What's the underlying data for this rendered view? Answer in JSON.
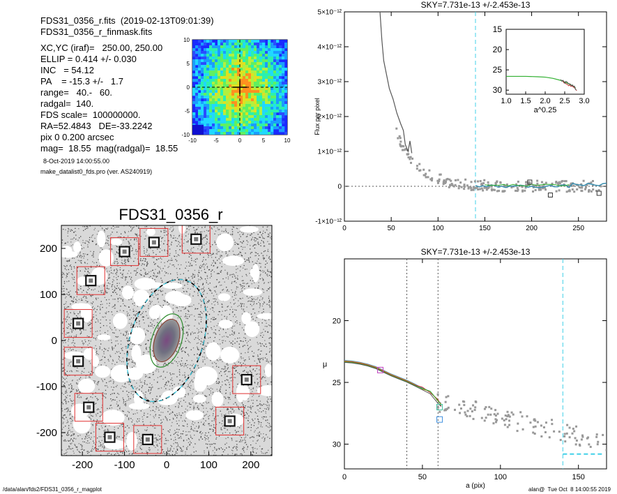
{
  "header": {
    "line1": "FDS31_0356_r.fits  (2019-02-13T09:01:39)",
    "line2": "FDS31_0356_r_finmask.fits",
    "params": [
      "XC,YC (iraf)=   250.00, 250.00",
      "ELLIP = 0.414 +/- 0.030",
      "INC   = 54.12",
      "PA    = -15.3 +/-   1.7",
      "range=   40.-   60.",
      "radgal=  140.",
      "FDS scale=  100000000.",
      "RA=52.4843   DE=-33.2242",
      "pix 0 0.200 arcsec",
      "mag=  18.55  mag(radgal)=  18.55"
    ],
    "date": "8-Oct-2019 14:00:55.00",
    "program": "make_datalist0_fds.pro (ver. AS240919)"
  },
  "footer": {
    "path": "/data/alan/fds2/FDS31_0356_r_magplot",
    "stamp": "alan@  Tue Oct  8 14:00:55 2019"
  },
  "colors": {
    "mask_red": "#e03030",
    "cyan": "#40d0e8",
    "green": "#30b030",
    "grey": "#888888"
  },
  "chart_data": [
    {
      "id": "thumbnail",
      "type": "heatmap",
      "title": "",
      "xlim": [
        -10,
        10
      ],
      "ylim": [
        -10,
        10
      ],
      "xticks": [
        -10,
        -5,
        0,
        5,
        10
      ],
      "yticks": [
        -10,
        -5,
        0,
        5,
        10
      ],
      "crosshair": [
        0,
        0
      ]
    },
    {
      "id": "galaxy_image",
      "type": "scatter",
      "title": "FDS31_0356_r",
      "xlim": [
        -250,
        250
      ],
      "ylim": [
        -250,
        250
      ],
      "xticks": [
        -200,
        -100,
        0,
        100,
        200
      ],
      "yticks": [
        -200,
        -100,
        0,
        100,
        200
      ],
      "ellipse_outer": {
        "a": 140,
        "ellip": 0.414,
        "pa": -15.3
      },
      "ellipse_inner": {
        "a": 60,
        "ellip": 0.414,
        "pa": -15.3
      },
      "masked_stars": [
        {
          "x": 70,
          "y": 220
        },
        {
          "x": -30,
          "y": 213
        },
        {
          "x": -100,
          "y": 193
        },
        {
          "x": -180,
          "y": 130
        },
        {
          "x": -210,
          "y": 37
        },
        {
          "x": -210,
          "y": -45
        },
        {
          "x": 190,
          "y": -85
        },
        {
          "x": -185,
          "y": -145
        },
        {
          "x": 150,
          "y": -175
        },
        {
          "x": -135,
          "y": -210
        },
        {
          "x": -45,
          "y": -215
        }
      ]
    },
    {
      "id": "sky_profile",
      "type": "scatter",
      "title": "SKY=7.731e-13 +/-2.453e-13",
      "xlabel": "",
      "ylabel": "Flux per pixel",
      "xlim": [
        0,
        280
      ],
      "ylim": [
        -1e-12,
        5e-12
      ],
      "xticks": [
        0,
        50,
        100,
        150,
        200,
        250
      ],
      "yticks": [
        -1e-12,
        0,
        1e-12,
        2e-12,
        3e-12,
        4e-12,
        5e-12
      ],
      "ytick_labels": [
        "-1×10⁻¹²",
        "0",
        "1×10⁻¹²",
        "2×10⁻¹²",
        "3×10⁻¹²",
        "4×10⁻¹²",
        "5×10⁻¹²"
      ],
      "vline": 140,
      "curve": [
        [
          38,
          5e-12
        ],
        [
          40,
          4.2e-12
        ],
        [
          42,
          3.6e-12
        ],
        [
          45,
          3.2e-12
        ],
        [
          48,
          2.8e-12
        ],
        [
          52,
          2.5e-12
        ],
        [
          56,
          2.1e-12
        ],
        [
          60,
          1.8e-12
        ],
        [
          63,
          1.6e-12
        ],
        [
          65,
          1.2e-12
        ],
        [
          68,
          1e-12
        ],
        [
          70,
          1.3e-12
        ],
        [
          72,
          9.5e-13
        ]
      ],
      "outliers": [
        [
          198,
          1.2e-13
        ],
        [
          220,
          -2.5e-13
        ],
        [
          272,
          -2e-13
        ]
      ],
      "inset": {
        "xlabel": "a^0.25",
        "xlim": [
          1.0,
          3.0
        ],
        "ylim": [
          31,
          15
        ],
        "xticks": [
          1.0,
          1.5,
          2.0,
          2.5,
          3.0
        ],
        "yticks": [
          15,
          20,
          25,
          30
        ],
        "green_curve": [
          [
            1.0,
            26.6
          ],
          [
            1.5,
            26.6
          ],
          [
            1.8,
            26.7
          ],
          [
            2.0,
            26.8
          ],
          [
            2.2,
            27.1
          ],
          [
            2.4,
            27.6
          ],
          [
            2.55,
            28.2
          ],
          [
            2.7,
            28.9
          ],
          [
            2.78,
            29.5
          ]
        ]
      }
    },
    {
      "id": "surface_brightness",
      "type": "line",
      "title": "SKY=7.731e-13 +/-2.453e-13",
      "xlabel": "a (pix)",
      "ylabel": "μ",
      "xlim": [
        0,
        168
      ],
      "ylim": [
        32,
        15
      ],
      "xticks": [
        0,
        50,
        100,
        150
      ],
      "yticks": [
        20,
        25,
        30
      ],
      "vlines_dotted": [
        40,
        60
      ],
      "vline_dashed": 140,
      "sky_segment": {
        "x0": 140,
        "x1": 165,
        "y": 30.8
      },
      "curve": [
        [
          0,
          23.3
        ],
        [
          5,
          23.35
        ],
        [
          10,
          23.45
        ],
        [
          15,
          23.6
        ],
        [
          20,
          23.8
        ],
        [
          25,
          24.1
        ],
        [
          30,
          24.4
        ],
        [
          35,
          24.65
        ],
        [
          40,
          24.9
        ],
        [
          45,
          25.2
        ],
        [
          50,
          25.5
        ],
        [
          55,
          25.8
        ],
        [
          60,
          26.5
        ],
        [
          62,
          26.8
        ]
      ],
      "markers": [
        {
          "x": 23,
          "y": 24.0,
          "color": "#c040c0"
        },
        {
          "x": 61,
          "y": 27.0,
          "color": "#40c0a0"
        },
        {
          "x": 61,
          "y": 28.0,
          "color": "#4090e0"
        }
      ]
    }
  ]
}
